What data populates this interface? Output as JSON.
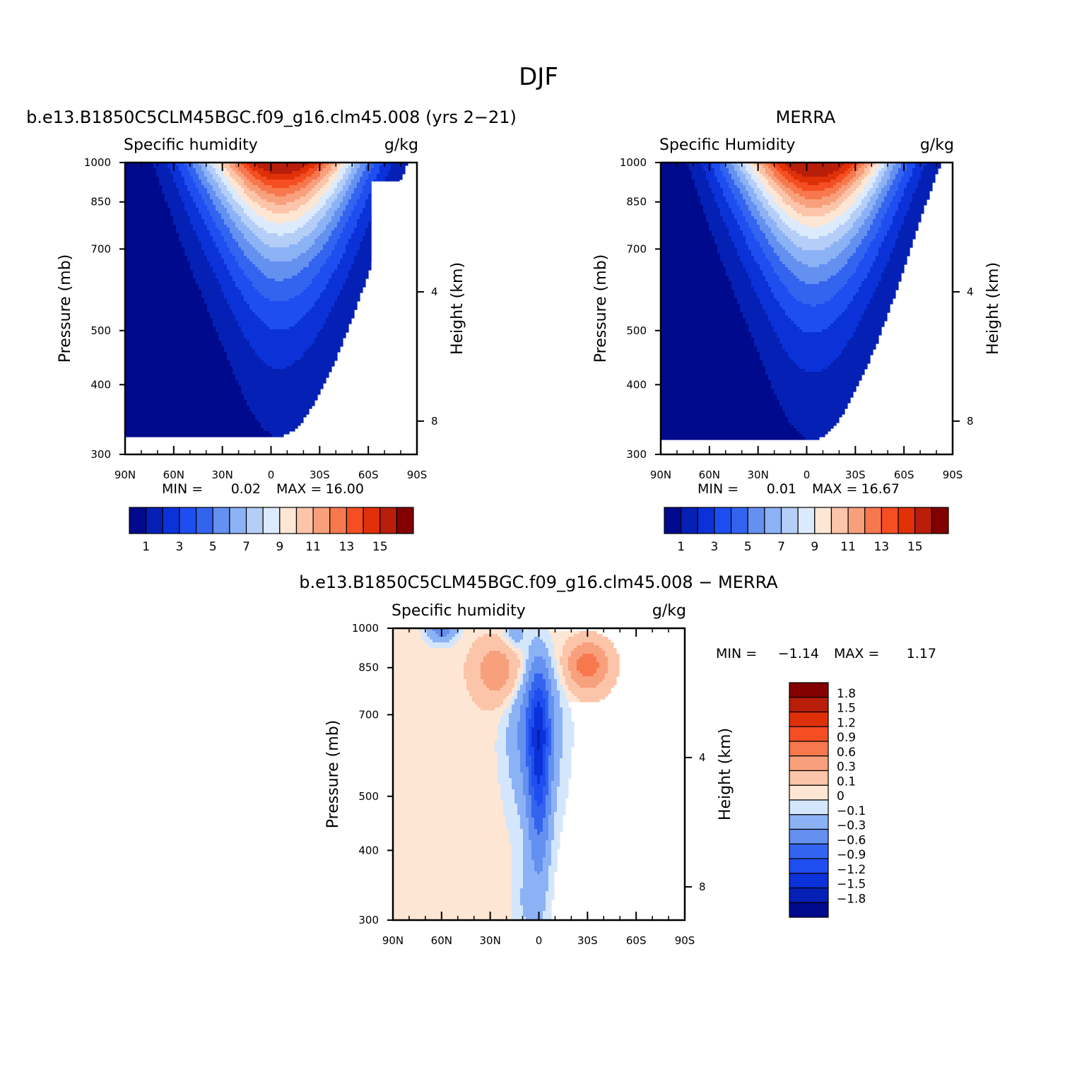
{
  "figure": {
    "title": "DJF"
  },
  "chart_data": [
    {
      "type": "heatmap",
      "panel": "model",
      "title": "b.e13.B1850C5CLM45BGC.f09_g16.clm45.008 (yrs 2−21)",
      "subtitle_left": "Specific humidity",
      "units": "g/kg",
      "xlabel": "",
      "ylabel": "Pressure (mb)",
      "y2label": "Height (km)",
      "x_ticks": [
        "90N",
        "60N",
        "30N",
        "0",
        "30S",
        "60S",
        "90S"
      ],
      "y_ticks": [
        "300",
        "400",
        "500",
        "700",
        "850",
        "1000"
      ],
      "y_tick_values": [
        300,
        400,
        500,
        700,
        850,
        1000
      ],
      "y2_ticks": [
        "8",
        "4"
      ],
      "y2_tick_values": [
        8,
        4
      ],
      "xlim": [
        90,
        -90
      ],
      "ylim": [
        1000,
        300
      ],
      "stats": {
        "min_label": "MIN =",
        "min": "0.02",
        "max_label": "MAX =",
        "max": "16.00"
      },
      "levels": [
        1,
        2,
        3,
        4,
        5,
        6,
        7,
        8,
        9,
        10,
        11,
        12,
        13,
        14,
        15
      ],
      "colorbar_labels": [
        "1",
        "3",
        "5",
        "7",
        "9",
        "11",
        "13",
        "15"
      ],
      "colors": [
        "#000a8c",
        "#0520b4",
        "#0a32d8",
        "#1e4ef0",
        "#3264f0",
        "#6490f0",
        "#8cb2f6",
        "#b4cef8",
        "#dceafe",
        "#fde6d4",
        "#fcc4a8",
        "#f8a07c",
        "#f8784e",
        "#f44e22",
        "#e03008",
        "#b81e0a",
        "#820000"
      ],
      "field": {
        "peak_lat": -3,
        "peak_value": 16.0,
        "width_surface": 30,
        "scale_height": 0.36,
        "south_bias": 0.12
      }
    },
    {
      "type": "heatmap",
      "panel": "obs",
      "title": "MERRA",
      "subtitle_left": "Specific Humidity",
      "units": "g/kg",
      "xlabel": "",
      "ylabel": "Pressure (mb)",
      "y2label": "Height (km)",
      "x_ticks": [
        "90N",
        "60N",
        "30N",
        "0",
        "30S",
        "60S",
        "90S"
      ],
      "y_ticks": [
        "300",
        "400",
        "500",
        "700",
        "850",
        "1000"
      ],
      "y_tick_values": [
        300,
        400,
        500,
        700,
        850,
        1000
      ],
      "y2_ticks": [
        "8",
        "4"
      ],
      "y2_tick_values": [
        8,
        4
      ],
      "xlim": [
        90,
        -90
      ],
      "ylim": [
        1000,
        300
      ],
      "stats": {
        "min_label": "MIN =",
        "min": "0.01",
        "max_label": "MAX =",
        "max": "16.67"
      },
      "levels": [
        1,
        2,
        3,
        4,
        5,
        6,
        7,
        8,
        9,
        10,
        11,
        12,
        13,
        14,
        15
      ],
      "colorbar_labels": [
        "1",
        "3",
        "5",
        "7",
        "9",
        "11",
        "13",
        "15"
      ],
      "colors": [
        "#000a8c",
        "#0520b4",
        "#0a32d8",
        "#1e4ef0",
        "#3264f0",
        "#6490f0",
        "#8cb2f6",
        "#b4cef8",
        "#dceafe",
        "#fde6d4",
        "#fcc4a8",
        "#f8a07c",
        "#f8784e",
        "#f44e22",
        "#e03008",
        "#b81e0a",
        "#820000"
      ],
      "field": {
        "peak_lat": -2,
        "peak_value": 16.67,
        "width_surface": 30,
        "scale_height": 0.36,
        "south_bias": 0.1
      }
    },
    {
      "type": "heatmap",
      "panel": "difference",
      "title": "b.e13.B1850C5CLM45BGC.f09_g16.clm45.008 − MERRA",
      "subtitle_left": "Specific humidity",
      "units": "g/kg",
      "xlabel": "",
      "ylabel": "Pressure (mb)",
      "y2label": "Height (km)",
      "x_ticks": [
        "90N",
        "60N",
        "30N",
        "0",
        "30S",
        "60S",
        "90S"
      ],
      "y_ticks": [
        "300",
        "400",
        "500",
        "700",
        "850",
        "1000"
      ],
      "y_tick_values": [
        300,
        400,
        500,
        700,
        850,
        1000
      ],
      "y2_ticks": [
        "8",
        "4"
      ],
      "y2_tick_values": [
        8,
        4
      ],
      "xlim": [
        90,
        -90
      ],
      "ylim": [
        1000,
        300
      ],
      "stats": {
        "min_label": "MIN =",
        "min": "−1.14",
        "max_label": "MAX =",
        "max": "1.17"
      },
      "levels": [
        -1.8,
        -1.5,
        -1.2,
        -0.9,
        -0.6,
        -0.3,
        -0.1,
        0,
        0.1,
        0.3,
        0.6,
        0.9,
        1.2,
        1.5,
        1.8
      ],
      "colorbar_labels": [
        "1.8",
        "1.5",
        "1.2",
        "0.9",
        "0.6",
        "0.3",
        "0.1",
        "0",
        "−0.1",
        "−0.3",
        "−0.6",
        "−0.9",
        "−1.2",
        "−1.5",
        "−1.8"
      ],
      "colors": [
        "#000a8c",
        "#0520b4",
        "#0a32d8",
        "#1e4ef0",
        "#3264f0",
        "#6490f0",
        "#8cb2f6",
        "#d4e6fc",
        "#fde6d4",
        "#fcc4a8",
        "#f8a07c",
        "#f8784e",
        "#f44e22",
        "#e03008",
        "#b81e0a",
        "#820000"
      ]
    }
  ]
}
